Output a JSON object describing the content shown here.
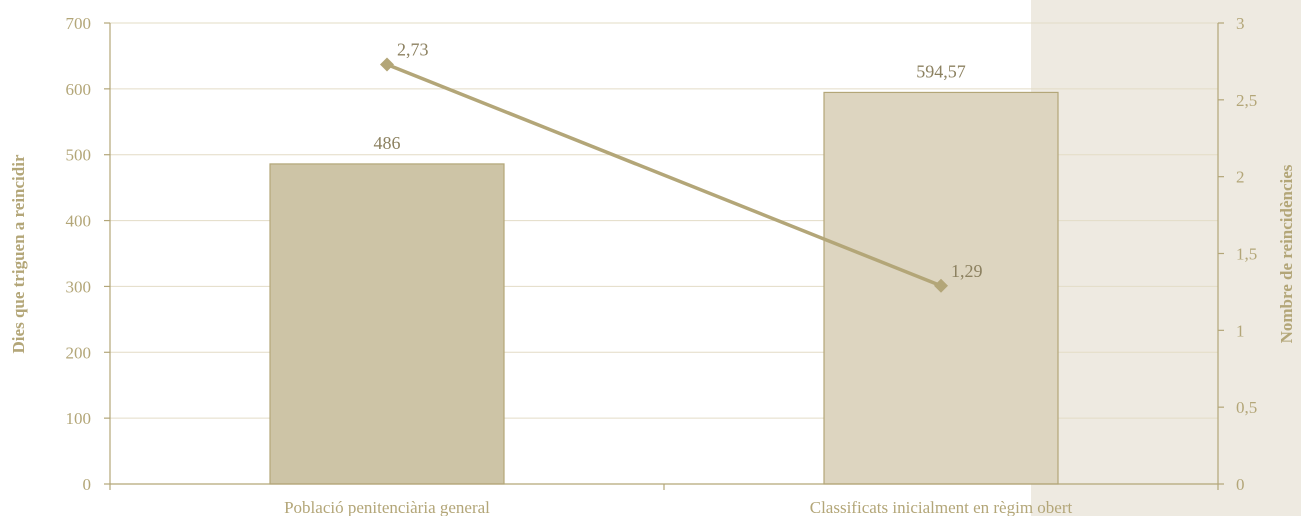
{
  "chart_data": {
    "type": "bar",
    "categories": [
      "Població penitenciària general",
      "Classificats inicialment en règim obert"
    ],
    "series": [
      {
        "type": "bar",
        "axis": "left",
        "values": [
          486,
          594.57
        ],
        "value_labels": [
          "486",
          "594,57"
        ],
        "colors": [
          "#cdc4a6",
          "#ddd5c0"
        ]
      },
      {
        "type": "line",
        "axis": "right",
        "values": [
          2.73,
          1.29
        ],
        "value_labels": [
          "2,73",
          "1,29"
        ],
        "color": "#b3a678",
        "marker": "diamond"
      }
    ],
    "ylabel": "Dies que triguen a reincidir",
    "ylabel_right": "Nombre de reincidències",
    "ylim": [
      0,
      700
    ],
    "ylim_right": [
      0,
      3
    ],
    "yticks": [
      "0",
      "100",
      "200",
      "300",
      "400",
      "500",
      "600",
      "700"
    ],
    "yticks_right": [
      "0",
      "0,5",
      "1",
      "1,5",
      "2",
      "2,5",
      "3"
    ],
    "grid": true,
    "legend": "none",
    "colors": {
      "axis": "#b3a678",
      "grid": "#e3dcc6",
      "shaded_band": "#eeeae1"
    }
  }
}
